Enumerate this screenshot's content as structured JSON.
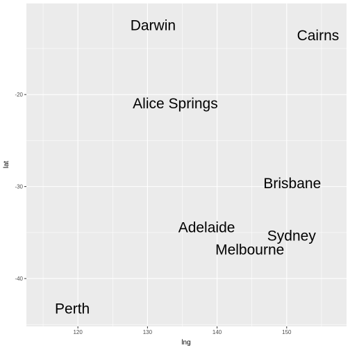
{
  "chart_data": {
    "type": "scatter",
    "title": "",
    "xlabel": "lng",
    "ylabel": "lat",
    "xlim": [
      112.6,
      158.6
    ],
    "ylim": [
      -45.2,
      -10.1
    ],
    "x_ticks": [
      120,
      130,
      140,
      150
    ],
    "y_ticks": [
      -20,
      -30,
      -40
    ],
    "x_tick_labels": [
      "120",
      "130",
      "140",
      "150"
    ],
    "y_tick_labels": [
      "-20",
      "-30",
      "-40"
    ],
    "grid": true,
    "background": "#EBEBEB",
    "grid_color": "#FFFFFF",
    "point_style": "text-label",
    "points": [
      {
        "label": "Darwin",
        "x": 130.8,
        "y": -12.5
      },
      {
        "label": "Cairns",
        "x": 154.5,
        "y": -13.6
      },
      {
        "label": "Alice Springs",
        "x": 134.0,
        "y": -21.0
      },
      {
        "label": "Brisbane",
        "x": 150.8,
        "y": -29.7
      },
      {
        "label": "Adelaide",
        "x": 138.5,
        "y": -34.5
      },
      {
        "label": "Sydney",
        "x": 150.7,
        "y": -35.4
      },
      {
        "label": "Melbourne",
        "x": 144.7,
        "y": -36.9
      },
      {
        "label": "Perth",
        "x": 119.2,
        "y": -43.3
      }
    ]
  }
}
